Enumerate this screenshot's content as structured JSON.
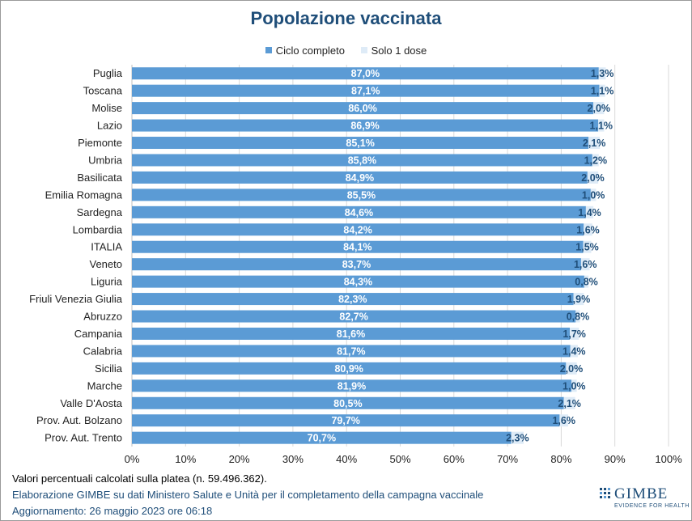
{
  "chart_data": {
    "type": "bar",
    "orientation": "horizontal",
    "stacked": true,
    "title": "Popolazione vaccinata",
    "categories": [
      "Puglia",
      "Toscana",
      "Molise",
      "Lazio",
      "Piemonte",
      "Umbria",
      "Basilicata",
      "Emilia Romagna",
      "Sardegna",
      "Lombardia",
      "ITALIA",
      "Veneto",
      "Liguria",
      "Friuli Venezia Giulia",
      "Abruzzo",
      "Campania",
      "Calabria",
      "Sicilia",
      "Marche",
      "Valle D'Aosta",
      "Prov. Aut. Bolzano",
      "Prov. Aut. Trento"
    ],
    "series": [
      {
        "name": "Ciclo completo",
        "color": "#5b9bd5",
        "values": [
          87.0,
          87.1,
          86.0,
          86.9,
          85.1,
          85.8,
          84.9,
          85.5,
          84.6,
          84.2,
          84.1,
          83.7,
          84.3,
          82.3,
          82.7,
          81.6,
          81.7,
          80.9,
          81.9,
          80.5,
          79.7,
          70.7
        ],
        "labels": [
          "87,0%",
          "87,1%",
          "86,0%",
          "86,9%",
          "85,1%",
          "85,8%",
          "84,9%",
          "85,5%",
          "84,6%",
          "84,2%",
          "84,1%",
          "83,7%",
          "84,3%",
          "82,3%",
          "82,7%",
          "81,6%",
          "81,7%",
          "80,9%",
          "81,9%",
          "80,5%",
          "79,7%",
          "70,7%"
        ]
      },
      {
        "name": "Solo 1 dose",
        "color": "#deebf7",
        "values": [
          1.3,
          1.1,
          2.0,
          1.1,
          2.1,
          1.2,
          2.0,
          1.0,
          1.4,
          1.6,
          1.5,
          1.6,
          0.8,
          1.9,
          0.8,
          1.7,
          1.4,
          2.0,
          1.0,
          2.1,
          1.6,
          2.3
        ],
        "labels": [
          "1,3%",
          "1,1%",
          "2,0%",
          "1,1%",
          "2,1%",
          "1,2%",
          "2,0%",
          "1,0%",
          "1,4%",
          "1,6%",
          "1,5%",
          "1,6%",
          "0,8%",
          "1,9%",
          "0,8%",
          "1,7%",
          "1,4%",
          "2,0%",
          "1,0%",
          "2,1%",
          "1,6%",
          "2,3%"
        ]
      }
    ],
    "xlim": [
      0,
      100
    ],
    "xticks": [
      0,
      10,
      20,
      30,
      40,
      50,
      60,
      70,
      80,
      90,
      100
    ],
    "xtick_labels": [
      "0%",
      "10%",
      "20%",
      "30%",
      "40%",
      "50%",
      "60%",
      "70%",
      "80%",
      "90%",
      "100%"
    ],
    "grid": true,
    "legend_position": "top"
  },
  "footer": {
    "note": "Valori percentuali calcolati sulla platea (n. 59.496.362).",
    "source": "Elaborazione GIMBE su dati Ministero Salute e Unità per il completamento della campagna vaccinale",
    "updated": "Aggiornamento: 26 maggio 2023 ore 06:18"
  },
  "logo": {
    "name": "GIMBE",
    "tagline": "EVIDENCE FOR HEALTH"
  }
}
